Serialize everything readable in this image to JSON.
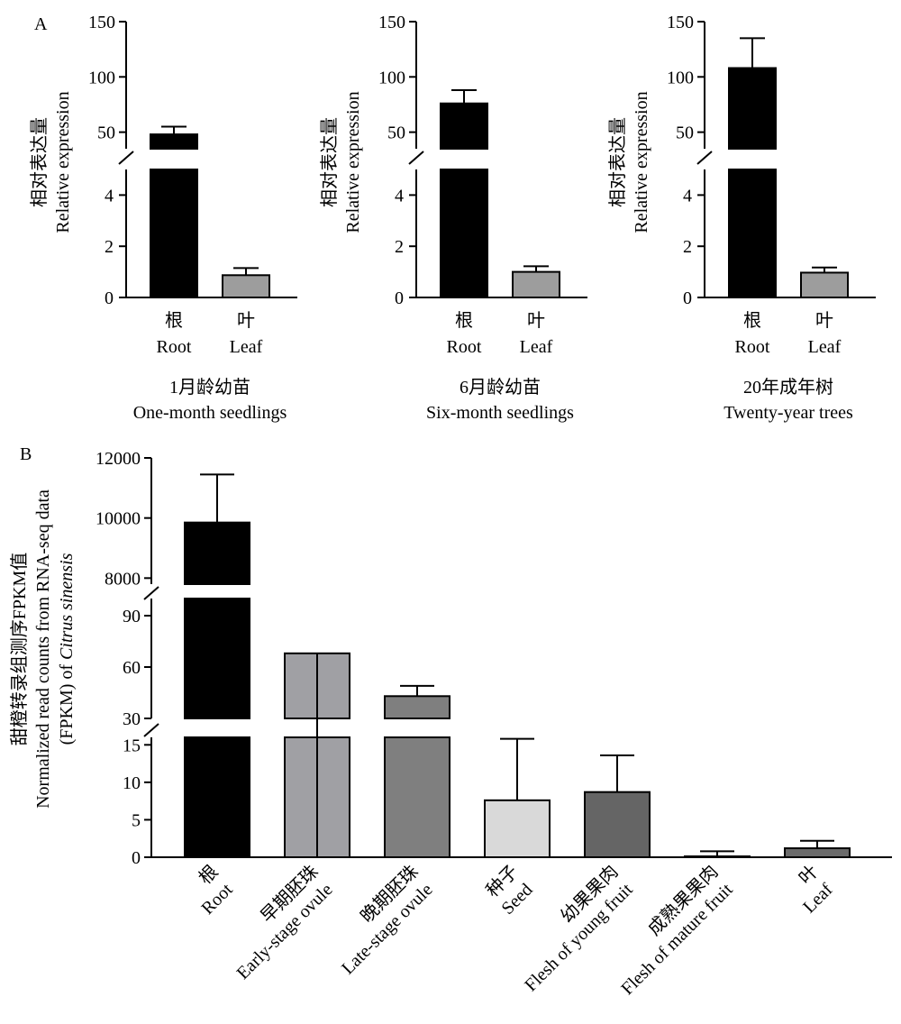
{
  "panel_a": {
    "label": "A",
    "ylabel_cn": "相对表达量",
    "ylabel_en": "Relative expression",
    "categories": [
      {
        "cn": "根",
        "en": "Root"
      },
      {
        "cn": "叶",
        "en": "Leaf"
      }
    ],
    "bar_colors": [
      "#000000",
      "#9d9d9d"
    ],
    "upper_ticks": [
      50,
      100,
      150
    ],
    "lower_ticks": [
      0,
      2,
      4
    ]
  },
  "panel_b": {
    "label": "B",
    "ylabel_cn": "甜橙转录组测序FPKM值",
    "ylabel_en_1": "Normalized read counts from RNA-seq data",
    "ylabel_en_2": "(FPKM) of ",
    "ylabel_en_2_italic": "Citrus sinensis",
    "categories": [
      {
        "cn": "根",
        "en": "Root"
      },
      {
        "cn": "早期胚珠",
        "en": "Early-stage ovule"
      },
      {
        "cn": "晚期胚珠",
        "en": "Late-stage ovule"
      },
      {
        "cn": "种子",
        "en": "Seed"
      },
      {
        "cn": "幼果果肉",
        "en": "Flesh of young fruit"
      },
      {
        "cn": "成熟果果肉",
        "en": "Flesh of mature fruit"
      },
      {
        "cn": "叶",
        "en": "Leaf"
      }
    ],
    "bar_colors": [
      "#000000",
      "#a0a0a4",
      "#7f7f7f",
      "#d9d9d9",
      "#656565",
      "#ffffff",
      "#6b6b6b"
    ],
    "top_ticks": [
      8000,
      10000,
      12000
    ],
    "mid_ticks": [
      30,
      60,
      90
    ],
    "low_ticks": [
      0,
      5,
      10,
      15
    ]
  },
  "chart_data": [
    {
      "type": "bar",
      "title": "1月龄幼苗",
      "subtitle": "One-month seedlings",
      "categories": [
        "Root",
        "Leaf"
      ],
      "values": [
        48,
        0.87
      ],
      "error": [
        7,
        0.28
      ],
      "ylabel": "Relative expression",
      "broken_axis": {
        "lower": [
          0,
          5
        ],
        "upper": [
          35,
          150
        ]
      }
    },
    {
      "type": "bar",
      "title": "6月龄幼苗",
      "subtitle": "Six-month seedlings",
      "categories": [
        "Root",
        "Leaf"
      ],
      "values": [
        76,
        1.0
      ],
      "error": [
        12,
        0.22
      ],
      "ylabel": "Relative expression",
      "broken_axis": {
        "lower": [
          0,
          5
        ],
        "upper": [
          35,
          150
        ]
      }
    },
    {
      "type": "bar",
      "title": "20年成年树",
      "subtitle": "Twenty-year trees",
      "categories": [
        "Root",
        "Leaf"
      ],
      "values": [
        108,
        0.97
      ],
      "error": [
        27,
        0.2
      ],
      "ylabel": "Relative expression",
      "broken_axis": {
        "lower": [
          0,
          5
        ],
        "upper": [
          35,
          150
        ]
      }
    },
    {
      "type": "bar",
      "categories": [
        "Root",
        "Early-stage ovule",
        "Late-stage ovule",
        "Seed",
        "Flesh of young fruit",
        "Flesh of mature fruit",
        "Leaf"
      ],
      "values": [
        9850,
        68,
        43,
        7.6,
        8.7,
        0.05,
        1.2
      ],
      "error": [
        1600,
        37,
        6,
        8.2,
        4.9,
        0.75,
        1.0
      ],
      "ylabel": "Normalized read counts from RNA-seq data (FPKM) of Citrus sinensis",
      "broken_axis": {
        "low": [
          0,
          16
        ],
        "mid": [
          30,
          100
        ],
        "top": [
          7800,
          12000
        ]
      }
    }
  ]
}
